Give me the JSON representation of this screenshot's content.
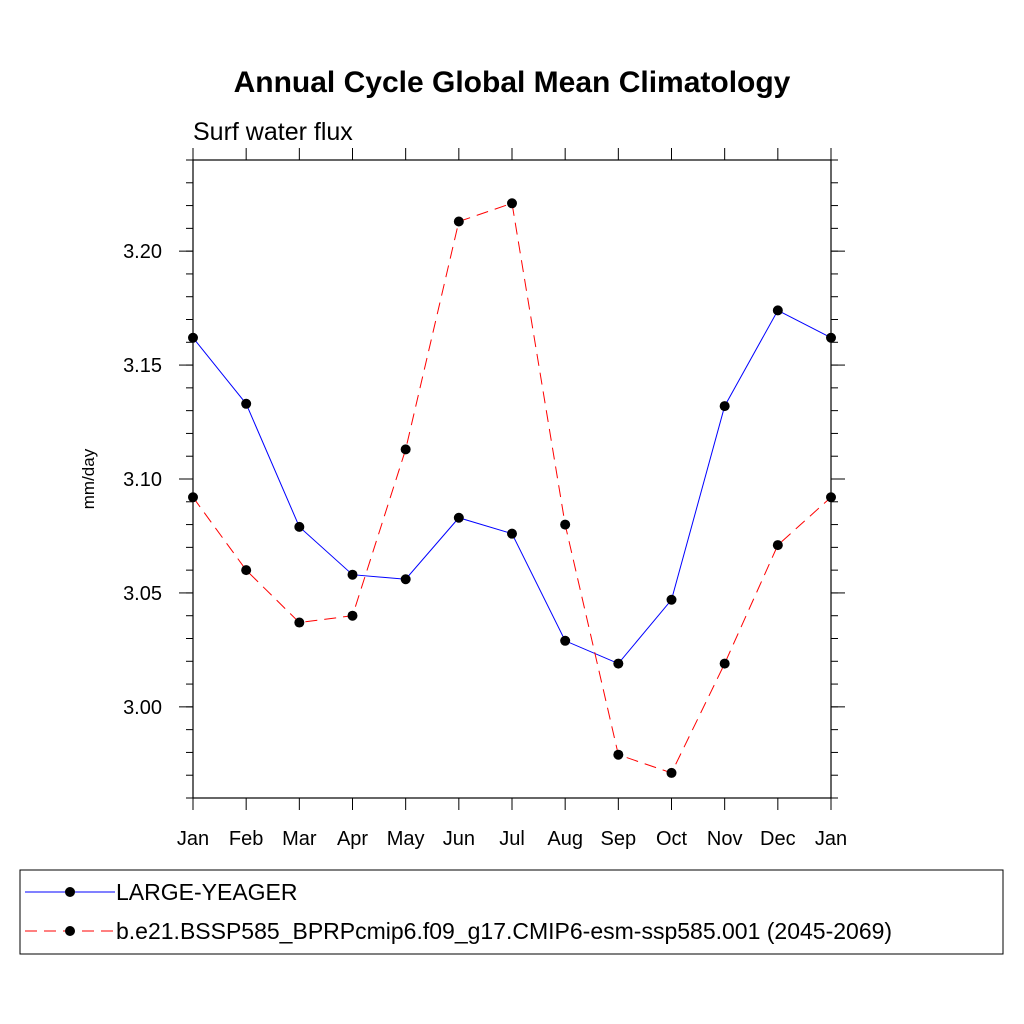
{
  "chart_data": {
    "type": "line",
    "title": "Annual Cycle Global Mean Climatology",
    "subtitle": "Surf water flux",
    "xlabel": "",
    "ylabel": "mm/day",
    "categories": [
      "Jan",
      "Feb",
      "Mar",
      "Apr",
      "May",
      "Jun",
      "Jul",
      "Aug",
      "Sep",
      "Oct",
      "Nov",
      "Dec",
      "Jan"
    ],
    "ylim": [
      2.96,
      3.24
    ],
    "yticks": [
      3.0,
      3.05,
      3.1,
      3.15,
      3.2
    ],
    "ytick_labels": [
      "3.00",
      "3.05",
      "3.10",
      "3.15",
      "3.20"
    ],
    "yminor_step": 0.01,
    "grid": false,
    "legend_position": "bottom",
    "series": [
      {
        "name": "LARGE-YEAGER",
        "color": "#0000ff",
        "dash": "solid",
        "marker": "filled-circle",
        "values": [
          3.162,
          3.133,
          3.079,
          3.058,
          3.056,
          3.083,
          3.076,
          3.029,
          3.019,
          3.047,
          3.132,
          3.174,
          3.162
        ]
      },
      {
        "name": "b.e21.BSSP585_BPRPcmip6.f09_g17.CMIP6-esm-ssp585.001 (2045-2069)",
        "color": "#ff0000",
        "dash": "dashed",
        "marker": "filled-circle",
        "values": [
          3.092,
          3.06,
          3.037,
          3.04,
          3.113,
          3.213,
          3.221,
          3.08,
          2.979,
          2.971,
          3.019,
          3.071,
          3.092
        ]
      }
    ]
  }
}
